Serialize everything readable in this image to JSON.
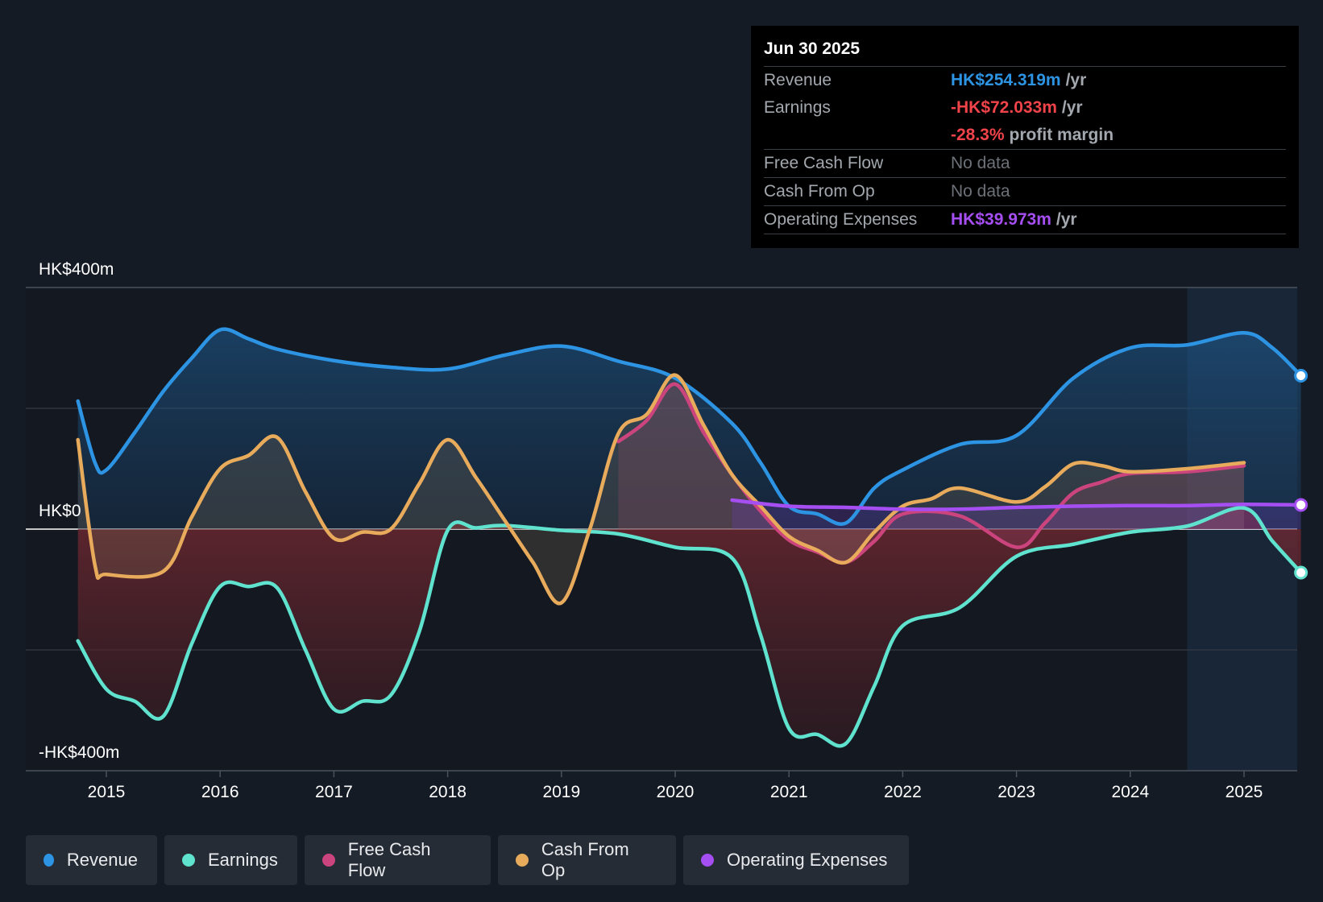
{
  "tooltip": {
    "date": "Jun 30 2025",
    "rows": [
      {
        "label": "Revenue",
        "value": "HK$254.319m",
        "unit": "/yr",
        "color": "#2d94e4"
      },
      {
        "label": "Earnings",
        "value": "-HK$72.033m",
        "unit": "/yr",
        "color": "#f0434a"
      },
      {
        "label": "",
        "value": "-28.3%",
        "unit": "profit margin",
        "color": "#f0434a"
      },
      {
        "label": "Free Cash Flow",
        "value": "No data",
        "unit": "",
        "color": "#6d7178"
      },
      {
        "label": "Cash From Op",
        "value": "No data",
        "unit": "",
        "color": "#6d7178"
      },
      {
        "label": "Operating Expenses",
        "value": "HK$39.973m",
        "unit": "/yr",
        "color": "#a54ef2"
      }
    ]
  },
  "legend": [
    {
      "label": "Revenue",
      "color": "#2d94e4"
    },
    {
      "label": "Earnings",
      "color": "#5fe3cf"
    },
    {
      "label": "Free Cash Flow",
      "color": "#cc447d"
    },
    {
      "label": "Cash From Op",
      "color": "#e8ab5c"
    },
    {
      "label": "Operating Expenses",
      "color": "#a54ef2"
    }
  ],
  "chart_data": {
    "type": "line",
    "title": "",
    "xlabel": "",
    "ylabel": "",
    "ylim": [
      -400,
      400
    ],
    "y_tick_labels": [
      "HK$400m",
      "HK$0",
      "-HK$400m"
    ],
    "x_tick_labels": [
      "2015",
      "2016",
      "2017",
      "2018",
      "2019",
      "2020",
      "2021",
      "2022",
      "2023",
      "2024",
      "2025"
    ],
    "forecast_shading_from": 2024.5,
    "series": [
      {
        "name": "Revenue",
        "color": "#2d94e4",
        "points": [
          [
            2014.75,
            212
          ],
          [
            2014.9,
            110
          ],
          [
            2015.0,
            98
          ],
          [
            2015.25,
            160
          ],
          [
            2015.5,
            228
          ],
          [
            2015.75,
            283
          ],
          [
            2016.0,
            330
          ],
          [
            2016.25,
            315
          ],
          [
            2016.5,
            298
          ],
          [
            2017.0,
            279
          ],
          [
            2017.5,
            268
          ],
          [
            2018.0,
            265
          ],
          [
            2018.5,
            288
          ],
          [
            2019.0,
            303
          ],
          [
            2019.5,
            278
          ],
          [
            2020.0,
            250
          ],
          [
            2020.5,
            175
          ],
          [
            2020.75,
            110
          ],
          [
            2021.0,
            38
          ],
          [
            2021.25,
            25
          ],
          [
            2021.5,
            10
          ],
          [
            2021.75,
            68
          ],
          [
            2022.0,
            98
          ],
          [
            2022.5,
            140
          ],
          [
            2023.0,
            155
          ],
          [
            2023.5,
            250
          ],
          [
            2024.0,
            300
          ],
          [
            2024.5,
            305
          ],
          [
            2025.0,
            325
          ],
          [
            2025.25,
            300
          ],
          [
            2025.5,
            254
          ]
        ]
      },
      {
        "name": "Earnings",
        "color": "#5fe3cf",
        "points": [
          [
            2014.75,
            -185
          ],
          [
            2015.0,
            -265
          ],
          [
            2015.25,
            -285
          ],
          [
            2015.5,
            -310
          ],
          [
            2015.75,
            -190
          ],
          [
            2016.0,
            -95
          ],
          [
            2016.25,
            -95
          ],
          [
            2016.5,
            -97
          ],
          [
            2016.75,
            -200
          ],
          [
            2017.0,
            -298
          ],
          [
            2017.25,
            -285
          ],
          [
            2017.5,
            -275
          ],
          [
            2017.75,
            -170
          ],
          [
            2018.0,
            -2
          ],
          [
            2018.25,
            2
          ],
          [
            2018.5,
            6
          ],
          [
            2019.0,
            -2
          ],
          [
            2019.5,
            -8
          ],
          [
            2020.0,
            -30
          ],
          [
            2020.5,
            -48
          ],
          [
            2020.75,
            -175
          ],
          [
            2021.0,
            -330
          ],
          [
            2021.25,
            -340
          ],
          [
            2021.5,
            -355
          ],
          [
            2021.75,
            -260
          ],
          [
            2022.0,
            -160
          ],
          [
            2022.5,
            -130
          ],
          [
            2023.0,
            -45
          ],
          [
            2023.5,
            -25
          ],
          [
            2024.0,
            -5
          ],
          [
            2024.5,
            5
          ],
          [
            2025.0,
            35
          ],
          [
            2025.25,
            -20
          ],
          [
            2025.5,
            -72
          ]
        ]
      },
      {
        "name": "Free Cash Flow",
        "color": "#cc447d",
        "points": [
          [
            2019.5,
            145
          ],
          [
            2019.75,
            180
          ],
          [
            2020.0,
            240
          ],
          [
            2020.25,
            160
          ],
          [
            2020.5,
            90
          ],
          [
            2020.75,
            30
          ],
          [
            2021.0,
            -18
          ],
          [
            2021.25,
            -38
          ],
          [
            2021.5,
            -55
          ],
          [
            2021.75,
            -20
          ],
          [
            2022.0,
            25
          ],
          [
            2022.5,
            22
          ],
          [
            2023.0,
            -30
          ],
          [
            2023.25,
            10
          ],
          [
            2023.5,
            60
          ],
          [
            2023.75,
            78
          ],
          [
            2024.0,
            92
          ],
          [
            2024.5,
            95
          ],
          [
            2025.0,
            105
          ]
        ]
      },
      {
        "name": "Cash From Op",
        "color": "#e8ab5c",
        "points": [
          [
            2014.75,
            148
          ],
          [
            2014.9,
            -60
          ],
          [
            2015.0,
            -75
          ],
          [
            2015.5,
            -70
          ],
          [
            2015.75,
            20
          ],
          [
            2016.0,
            100
          ],
          [
            2016.25,
            122
          ],
          [
            2016.5,
            152
          ],
          [
            2016.75,
            62
          ],
          [
            2017.0,
            -15
          ],
          [
            2017.25,
            -5
          ],
          [
            2017.5,
            0
          ],
          [
            2017.75,
            75
          ],
          [
            2018.0,
            148
          ],
          [
            2018.25,
            85
          ],
          [
            2018.5,
            15
          ],
          [
            2018.75,
            -55
          ],
          [
            2019.0,
            -122
          ],
          [
            2019.25,
            0
          ],
          [
            2019.5,
            158
          ],
          [
            2019.75,
            190
          ],
          [
            2020.0,
            255
          ],
          [
            2020.25,
            172
          ],
          [
            2020.5,
            90
          ],
          [
            2020.75,
            38
          ],
          [
            2021.0,
            -12
          ],
          [
            2021.25,
            -35
          ],
          [
            2021.5,
            -55
          ],
          [
            2021.75,
            -5
          ],
          [
            2022.0,
            38
          ],
          [
            2022.25,
            50
          ],
          [
            2022.5,
            68
          ],
          [
            2023.0,
            45
          ],
          [
            2023.25,
            70
          ],
          [
            2023.5,
            108
          ],
          [
            2023.75,
            105
          ],
          [
            2024.0,
            95
          ],
          [
            2024.5,
            100
          ],
          [
            2025.0,
            110
          ]
        ]
      },
      {
        "name": "Operating Expenses",
        "color": "#a54ef2",
        "points": [
          [
            2020.5,
            48
          ],
          [
            2021.0,
            38
          ],
          [
            2021.5,
            36
          ],
          [
            2022.0,
            33
          ],
          [
            2022.5,
            33
          ],
          [
            2023.0,
            36
          ],
          [
            2023.5,
            38
          ],
          [
            2024.0,
            39
          ],
          [
            2024.5,
            39
          ],
          [
            2025.0,
            41
          ],
          [
            2025.5,
            40
          ]
        ]
      }
    ]
  }
}
